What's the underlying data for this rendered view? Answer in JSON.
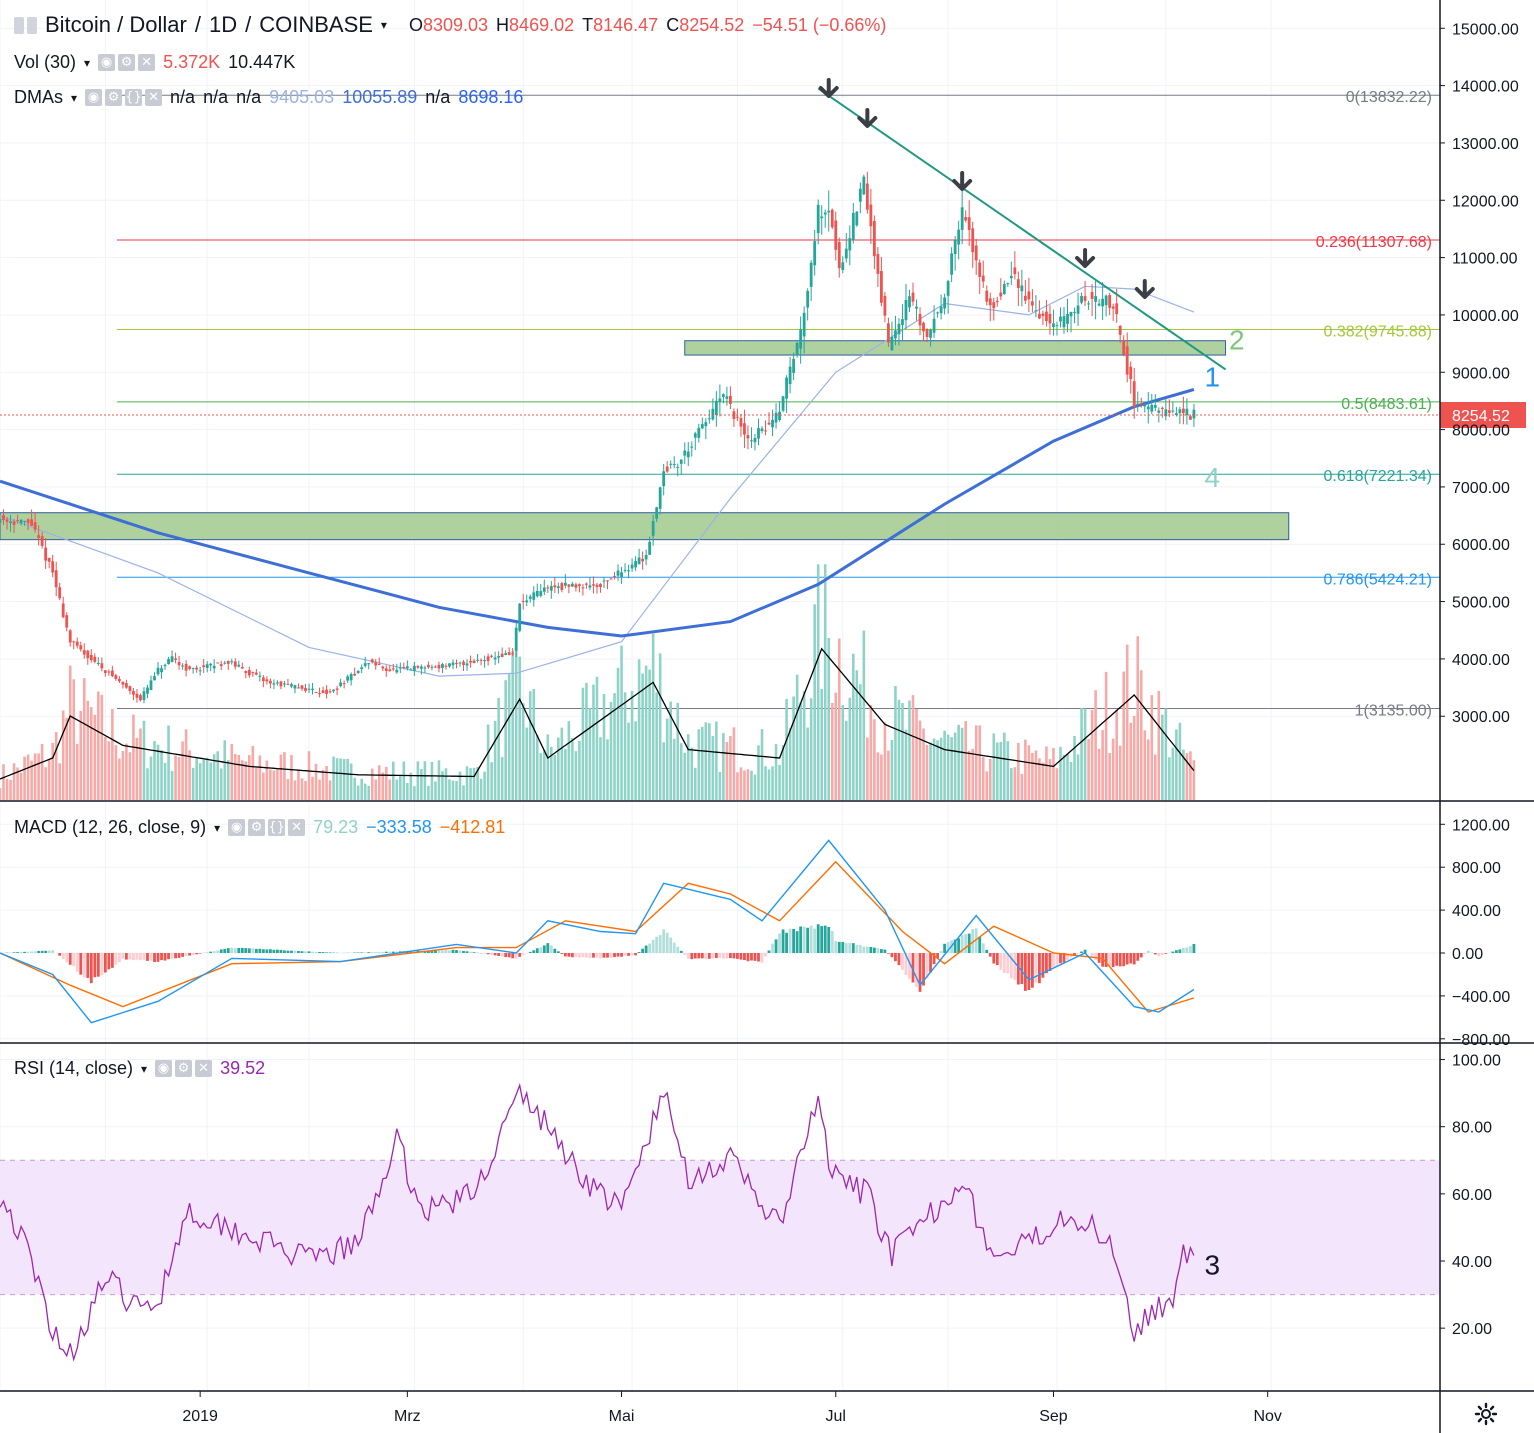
{
  "header": {
    "symbol": "Bitcoin / Dollar",
    "interval": "1D",
    "exchange": "COINBASE",
    "open_label": "O",
    "open": "8309.03",
    "high_label": "H",
    "high": "8469.02",
    "low_label": "T",
    "low": "8146.47",
    "close_label": "C",
    "close": "8254.52",
    "change": "−54.51 (−0.66%)"
  },
  "vol": {
    "label": "Vol (30)",
    "v1": "5.372K",
    "v2": "10.447K"
  },
  "dmas": {
    "label": "DMAs",
    "values": [
      "n/a",
      "n/a",
      "n/a",
      "9405.03",
      "10055.89",
      "n/a",
      "8698.16"
    ]
  },
  "macd": {
    "label": "MACD (12, 26, close, 9)",
    "hist": "79.23",
    "macd": "−333.58",
    "signal": "−412.81"
  },
  "rsi": {
    "label": "RSI (14, close)",
    "value": "39.52"
  },
  "colors": {
    "up": "#26a69a",
    "down": "#ef5350",
    "ma_thick": "#3d6fd6",
    "ma_thin": "#9bb3e6",
    "rsi": "#9c27b0",
    "band": "#f3e5fb",
    "zone": "#a5cc93"
  },
  "price_tag": "8254.52",
  "chart_data": [
    {
      "type": "line",
      "title": "Bitcoin / Dollar, 1D, COINBASE",
      "x_ticks": [
        "2019",
        "Mrz",
        "Mai",
        "Jul",
        "Sep",
        "Nov"
      ],
      "y_ticks": [
        "3000.00",
        "4000.00",
        "5000.00",
        "6000.00",
        "7000.00",
        "8000.00",
        "9000.00",
        "10000.00",
        "11000.00",
        "12000.00",
        "13000.00",
        "14000.00",
        "15000.00"
      ],
      "ylim": [
        2050,
        15700
      ],
      "price_anchors": {
        "x": [
          "2018-11-05",
          "2018-11-14",
          "2018-11-20",
          "2018-11-25",
          "2018-12-07",
          "2018-12-15",
          "2018-12-20",
          "2018-12-24",
          "2018-12-29",
          "2019-01-09",
          "2019-01-20",
          "2019-02-07",
          "2019-02-18",
          "2019-02-24",
          "2019-03-15",
          "2019-03-31",
          "2019-04-02",
          "2019-04-10",
          "2019-04-25",
          "2019-05-08",
          "2019-05-13",
          "2019-05-17",
          "2019-05-30",
          "2019-06-06",
          "2019-06-14",
          "2019-06-21",
          "2019-06-26",
          "2019-06-29",
          "2019-07-02",
          "2019-07-09",
          "2019-07-16",
          "2019-07-22",
          "2019-07-27",
          "2019-08-01",
          "2019-08-06",
          "2019-08-14",
          "2019-08-20",
          "2019-08-28",
          "2019-09-02",
          "2019-09-10",
          "2019-09-18",
          "2019-09-24",
          "2019-10-01",
          "2019-10-08",
          "2019-10-11"
        ],
        "y": [
          6450,
          6350,
          5500,
          4300,
          3700,
          3300,
          3800,
          4000,
          3800,
          3950,
          3600,
          3400,
          3950,
          3800,
          3900,
          4100,
          4950,
          5250,
          5300,
          5800,
          7300,
          7400,
          8600,
          7800,
          8200,
          9700,
          11800,
          11900,
          10800,
          12300,
          9500,
          10300,
          9600,
          10400,
          11800,
          10100,
          10700,
          10000,
          9800,
          10300,
          10200,
          8500,
          8300,
          8300,
          8254
        ]
      },
      "fib_levels": [
        {
          "label": "0(13832.22)",
          "value": 13832.22
        },
        {
          "label": "0.236(11307.68)",
          "value": 11307.68
        },
        {
          "label": "0.382(9745.88)",
          "value": 9745.88
        },
        {
          "label": "0.5(8483.61)",
          "value": 8483.61
        },
        {
          "label": "0.618(7221.34)",
          "value": 7221.34
        },
        {
          "label": "0.786(5424.21)",
          "value": 5424.21
        },
        {
          "label": "1(3135.00)",
          "value": 3135.0
        }
      ],
      "zones": [
        {
          "x": [
            "2019-05-19",
            "2019-10-20"
          ],
          "y": [
            9300,
            9550
          ]
        },
        {
          "x": [
            "2018-11-05",
            "2019-11-07"
          ],
          "y": [
            6080,
            6550
          ]
        }
      ],
      "trendline": {
        "x": [
          "2019-06-26",
          "2019-10-20"
        ],
        "y": [
          13950,
          9050
        ]
      },
      "ma_thick": {
        "x": [
          "2018-11-05",
          "2018-12-20",
          "2019-02-01",
          "2019-03-10",
          "2019-04-10",
          "2019-05-01",
          "2019-06-01",
          "2019-06-26",
          "2019-08-01",
          "2019-09-01",
          "2019-09-24",
          "2019-10-11"
        ],
        "y": [
          7100,
          6200,
          5500,
          4900,
          4550,
          4400,
          4650,
          5300,
          6700,
          7800,
          8400,
          8700
        ]
      },
      "ma_thin": {
        "x": [
          "2018-11-05",
          "2018-12-20",
          "2019-02-01",
          "2019-03-10",
          "2019-04-01",
          "2019-05-01",
          "2019-06-01",
          "2019-07-01",
          "2019-08-01",
          "2019-08-25",
          "2019-09-10",
          "2019-09-24",
          "2019-10-11"
        ],
        "y": [
          6500,
          5500,
          4200,
          3700,
          3750,
          4300,
          6800,
          9000,
          10200,
          10000,
          10500,
          10450,
          10050
        ]
      },
      "arrows_x": [
        "2019-06-29",
        "2019-07-10",
        "2019-08-06",
        "2019-09-10",
        "2019-09-27"
      ],
      "annotations": [
        {
          "text": "1",
          "x": "2019-10-14",
          "y": 8750
        },
        {
          "text": "2",
          "x": "2019-10-21",
          "y": 9400
        },
        {
          "text": "4",
          "x": "2019-10-14",
          "y": 7000
        }
      ],
      "volume": {
        "ylim": [
          0,
          21000
        ],
        "x": [
          "2018-11-05",
          "2018-11-20",
          "2018-11-25",
          "2018-12-10",
          "2019-01-15",
          "2019-02-15",
          "2019-03-20",
          "2019-04-02",
          "2019-04-10",
          "2019-05-10",
          "2019-05-20",
          "2019-06-15",
          "2019-06-27",
          "2019-07-15",
          "2019-08-01",
          "2019-09-01",
          "2019-09-24",
          "2019-10-11"
        ],
        "y": [
          2500,
          5000,
          10000,
          6500,
          4000,
          3000,
          2800,
          12000,
          5000,
          14000,
          6000,
          5000,
          18000,
          9000,
          6000,
          4000,
          12500,
          3500
        ]
      }
    },
    {
      "type": "line",
      "title": "MACD (12, 26, close, 9)",
      "y_ticks": [
        "1200.00",
        "800.00",
        "400.00",
        "0.00",
        "−400.00",
        "−800.00"
      ],
      "ylim": [
        -850,
        1300
      ],
      "macd": {
        "x": [
          "2018-11-05",
          "2018-11-20",
          "2018-12-01",
          "2018-12-20",
          "2019-01-10",
          "2019-02-10",
          "2019-03-15",
          "2019-04-01",
          "2019-04-10",
          "2019-04-25",
          "2019-05-05",
          "2019-05-13",
          "2019-06-01",
          "2019-06-10",
          "2019-06-29",
          "2019-07-15",
          "2019-07-25",
          "2019-08-10",
          "2019-08-25",
          "2019-09-10",
          "2019-09-24",
          "2019-10-01",
          "2019-10-11"
        ],
        "y": [
          0,
          -200,
          -650,
          -450,
          -50,
          -80,
          80,
          0,
          300,
          200,
          180,
          650,
          500,
          300,
          1050,
          400,
          -300,
          350,
          -250,
          0,
          -500,
          -550,
          -340
        ]
      },
      "signal": {
        "x": [
          "2018-11-05",
          "2018-11-25",
          "2018-12-10",
          "2019-01-10",
          "2019-02-10",
          "2019-03-15",
          "2019-04-01",
          "2019-04-15",
          "2019-05-05",
          "2019-05-20",
          "2019-06-01",
          "2019-06-15",
          "2019-07-01",
          "2019-07-20",
          "2019-08-01",
          "2019-08-15",
          "2019-09-01",
          "2019-09-15",
          "2019-09-28",
          "2019-10-11"
        ],
        "y": [
          0,
          -300,
          -500,
          -100,
          -80,
          50,
          50,
          300,
          200,
          650,
          550,
          300,
          850,
          200,
          -100,
          250,
          0,
          -50,
          -550,
          -420
        ]
      }
    },
    {
      "type": "line",
      "title": "RSI (14, close)",
      "y_ticks": [
        "100.00",
        "80.00",
        "60.00",
        "40.00",
        "20.00"
      ],
      "ylim": [
        0,
        100
      ],
      "band": [
        30,
        70
      ],
      "x": [
        "2018-11-05",
        "2018-11-12",
        "2018-11-20",
        "2018-11-25",
        "2018-12-05",
        "2018-12-15",
        "2018-12-20",
        "2018-12-28",
        "2019-01-10",
        "2019-02-01",
        "2019-02-15",
        "2019-02-26",
        "2019-03-05",
        "2019-03-20",
        "2019-04-02",
        "2019-04-10",
        "2019-04-20",
        "2019-05-01",
        "2019-05-13",
        "2019-05-20",
        "2019-06-01",
        "2019-06-15",
        "2019-06-26",
        "2019-06-30",
        "2019-07-10",
        "2019-07-17",
        "2019-07-25",
        "2019-08-06",
        "2019-08-15",
        "2019-08-25",
        "2019-09-05",
        "2019-09-18",
        "2019-09-24",
        "2019-09-30",
        "2019-10-05",
        "2019-10-08",
        "2019-10-11"
      ],
      "y": [
        60,
        45,
        20,
        12,
        35,
        25,
        28,
        55,
        50,
        40,
        45,
        76,
        55,
        60,
        90,
        80,
        65,
        55,
        90,
        65,
        70,
        50,
        88,
        65,
        60,
        42,
        50,
        65,
        40,
        45,
        55,
        45,
        20,
        25,
        30,
        45,
        39.52
      ],
      "annotations": [
        {
          "text": "3",
          "x": "2019-10-14",
          "y": 36
        }
      ]
    }
  ]
}
